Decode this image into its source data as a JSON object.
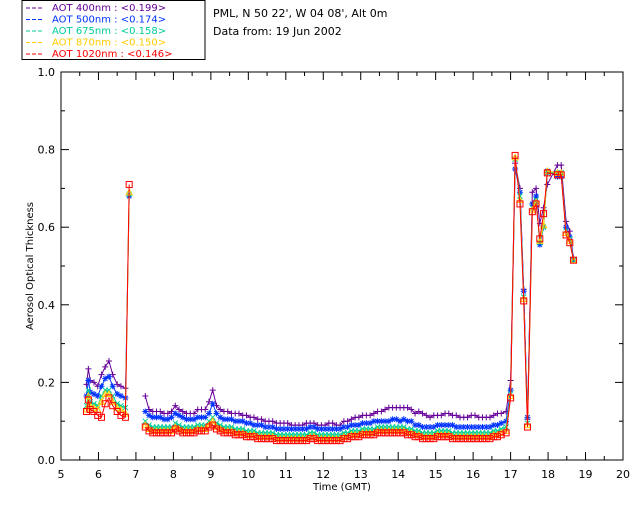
{
  "site_info": {
    "location": "PML, N 50 22', W 04 08', Alt 0m",
    "date": "Data from: 19 Jun 2002"
  },
  "chart_data": {
    "type": "line",
    "xlabel": "Time (GMT)",
    "ylabel": "Aerosol Optical Thickness",
    "xlim": [
      5,
      20
    ],
    "ylim": [
      0.0,
      1.0
    ],
    "x_ticks": [
      5,
      6,
      7,
      8,
      9,
      10,
      11,
      12,
      13,
      14,
      15,
      16,
      17,
      18,
      19,
      20
    ],
    "y_ticks": [
      0.0,
      0.2,
      0.4,
      0.6,
      0.8,
      1.0
    ],
    "y_tick_labels": [
      "0.0",
      "0.2",
      "0.4",
      "0.6",
      "0.8",
      "1.0"
    ],
    "grid": false,
    "legend_placement": "top-left-outside",
    "x": [
      5.68,
      5.73,
      5.78,
      5.88,
      5.98,
      6.08,
      6.18,
      6.28,
      6.38,
      6.5,
      6.6,
      6.72,
      6.82,
      7.25,
      7.35,
      7.45,
      7.55,
      7.65,
      7.75,
      7.85,
      7.95,
      8.05,
      8.15,
      8.25,
      8.35,
      8.45,
      8.55,
      8.65,
      8.75,
      8.85,
      8.95,
      9.05,
      9.15,
      9.25,
      9.35,
      9.45,
      9.55,
      9.65,
      9.75,
      9.85,
      9.95,
      10.05,
      10.15,
      10.25,
      10.35,
      10.45,
      10.55,
      10.65,
      10.75,
      10.85,
      10.95,
      11.05,
      11.15,
      11.25,
      11.35,
      11.45,
      11.55,
      11.65,
      11.75,
      11.85,
      11.95,
      12.05,
      12.15,
      12.25,
      12.35,
      12.45,
      12.55,
      12.65,
      12.75,
      12.85,
      12.95,
      13.05,
      13.15,
      13.25,
      13.35,
      13.45,
      13.55,
      13.65,
      13.75,
      13.85,
      13.95,
      14.05,
      14.15,
      14.25,
      14.35,
      14.45,
      14.55,
      14.65,
      14.75,
      14.85,
      14.95,
      15.05,
      15.15,
      15.25,
      15.35,
      15.45,
      15.55,
      15.65,
      15.75,
      15.85,
      15.95,
      16.05,
      16.15,
      16.25,
      16.35,
      16.45,
      16.55,
      16.65,
      16.75,
      16.88,
      17.0,
      17.12,
      17.25,
      17.35,
      17.45,
      17.58,
      17.68,
      17.78,
      17.88,
      17.98,
      18.25,
      18.35,
      18.48,
      18.58,
      18.68
    ],
    "series": [
      {
        "name": "AOT  400nm : <0.199>",
        "color": "#660099",
        "marker": "plus",
        "values": [
          0.195,
          0.235,
          0.205,
          0.2,
          0.19,
          0.22,
          0.24,
          0.255,
          0.22,
          0.195,
          0.19,
          0.185,
          null,
          0.165,
          0.13,
          0.125,
          0.125,
          0.125,
          0.12,
          0.12,
          0.125,
          0.14,
          0.13,
          0.125,
          0.12,
          0.12,
          0.12,
          0.13,
          0.13,
          0.13,
          0.15,
          0.18,
          0.14,
          0.13,
          0.125,
          0.125,
          0.12,
          0.12,
          0.12,
          0.115,
          0.115,
          0.11,
          0.11,
          0.105,
          0.105,
          0.1,
          0.1,
          0.1,
          0.095,
          0.095,
          0.095,
          0.095,
          0.09,
          0.09,
          0.09,
          0.09,
          0.095,
          0.095,
          0.095,
          0.09,
          0.09,
          0.09,
          0.095,
          0.095,
          0.09,
          0.09,
          0.1,
          0.1,
          0.105,
          0.11,
          0.11,
          0.115,
          0.115,
          0.115,
          0.12,
          0.125,
          0.125,
          0.13,
          0.135,
          0.135,
          0.135,
          0.135,
          0.135,
          0.135,
          0.13,
          0.12,
          0.125,
          0.12,
          0.115,
          0.11,
          0.115,
          0.115,
          0.115,
          0.12,
          0.12,
          0.115,
          0.115,
          0.11,
          0.11,
          0.11,
          0.115,
          0.115,
          0.11,
          0.11,
          0.11,
          0.11,
          0.115,
          0.12,
          0.12,
          0.125,
          0.205,
          0.765,
          0.7,
          0.44,
          0.105,
          0.69,
          0.7,
          0.61,
          0.65,
          0.71,
          0.76,
          0.76,
          0.615,
          0.59,
          0.52
        ]
      },
      {
        "name": "AOT  500nm : <0.174>",
        "color": "#0033ff",
        "marker": "star",
        "values": [
          0.165,
          0.205,
          0.175,
          0.17,
          0.165,
          0.19,
          0.21,
          0.215,
          0.19,
          0.17,
          0.165,
          0.16,
          0.68,
          0.125,
          0.115,
          0.11,
          0.11,
          0.11,
          0.105,
          0.105,
          0.11,
          0.12,
          0.115,
          0.11,
          0.105,
          0.105,
          0.105,
          0.11,
          0.11,
          0.11,
          0.12,
          0.145,
          0.12,
          0.11,
          0.105,
          0.105,
          0.105,
          0.1,
          0.1,
          0.1,
          0.095,
          0.095,
          0.09,
          0.09,
          0.09,
          0.085,
          0.085,
          0.085,
          0.08,
          0.08,
          0.08,
          0.08,
          0.08,
          0.08,
          0.08,
          0.08,
          0.08,
          0.085,
          0.085,
          0.08,
          0.08,
          0.08,
          0.08,
          0.08,
          0.08,
          0.08,
          0.085,
          0.085,
          0.09,
          0.09,
          0.09,
          0.095,
          0.095,
          0.095,
          0.1,
          0.1,
          0.1,
          0.1,
          0.1,
          0.105,
          0.105,
          0.1,
          0.105,
          0.1,
          0.1,
          0.09,
          0.09,
          0.085,
          0.085,
          0.085,
          0.085,
          0.09,
          0.09,
          0.09,
          0.09,
          0.09,
          0.085,
          0.085,
          0.085,
          0.085,
          0.085,
          0.085,
          0.085,
          0.085,
          0.085,
          0.085,
          0.09,
          0.09,
          0.095,
          0.1,
          0.18,
          0.75,
          0.69,
          0.435,
          0.11,
          0.66,
          0.68,
          0.555,
          0.6,
          0.745,
          0.73,
          0.73,
          0.6,
          0.575,
          0.515
        ]
      },
      {
        "name": "AOT  675nm : <0.158>",
        "color": "#00cc99",
        "marker": "x",
        "values": [
          0.14,
          0.18,
          0.15,
          0.145,
          0.14,
          0.165,
          0.18,
          0.18,
          0.165,
          0.145,
          0.14,
          0.135,
          0.685,
          0.1,
          0.09,
          0.085,
          0.085,
          0.085,
          0.085,
          0.085,
          0.085,
          0.095,
          0.09,
          0.085,
          0.085,
          0.085,
          0.085,
          0.09,
          0.09,
          0.09,
          0.1,
          0.11,
          0.095,
          0.09,
          0.085,
          0.085,
          0.085,
          0.08,
          0.08,
          0.08,
          0.075,
          0.075,
          0.075,
          0.07,
          0.07,
          0.07,
          0.07,
          0.07,
          0.065,
          0.065,
          0.065,
          0.065,
          0.065,
          0.065,
          0.065,
          0.065,
          0.065,
          0.07,
          0.07,
          0.065,
          0.065,
          0.065,
          0.065,
          0.065,
          0.065,
          0.065,
          0.07,
          0.07,
          0.075,
          0.075,
          0.075,
          0.08,
          0.08,
          0.08,
          0.08,
          0.085,
          0.085,
          0.085,
          0.085,
          0.085,
          0.085,
          0.085,
          0.085,
          0.08,
          0.08,
          0.075,
          0.075,
          0.07,
          0.07,
          0.07,
          0.07,
          0.075,
          0.075,
          0.075,
          0.075,
          0.07,
          0.07,
          0.07,
          0.07,
          0.07,
          0.07,
          0.07,
          0.07,
          0.07,
          0.07,
          0.07,
          0.075,
          0.075,
          0.08,
          0.085,
          0.17,
          0.775,
          0.68,
          0.42,
          0.095,
          0.65,
          0.67,
          0.56,
          0.6,
          0.74,
          0.74,
          0.74,
          0.59,
          0.57,
          0.515
        ]
      },
      {
        "name": "AOT  870nm : <0.150>",
        "color": "#ffcc00",
        "marker": "triangle",
        "values": [
          0.13,
          0.165,
          0.14,
          0.135,
          0.13,
          0.15,
          0.17,
          0.17,
          0.15,
          0.135,
          0.13,
          0.12,
          0.69,
          0.09,
          0.08,
          0.075,
          0.075,
          0.075,
          0.075,
          0.075,
          0.075,
          0.085,
          0.08,
          0.075,
          0.075,
          0.075,
          0.075,
          0.08,
          0.08,
          0.08,
          0.09,
          0.1,
          0.085,
          0.08,
          0.075,
          0.075,
          0.075,
          0.07,
          0.07,
          0.07,
          0.065,
          0.065,
          0.065,
          0.06,
          0.06,
          0.06,
          0.06,
          0.06,
          0.055,
          0.055,
          0.055,
          0.055,
          0.055,
          0.055,
          0.055,
          0.055,
          0.055,
          0.06,
          0.06,
          0.055,
          0.055,
          0.055,
          0.055,
          0.055,
          0.055,
          0.055,
          0.06,
          0.06,
          0.065,
          0.065,
          0.065,
          0.07,
          0.07,
          0.07,
          0.07,
          0.075,
          0.075,
          0.075,
          0.075,
          0.075,
          0.075,
          0.075,
          0.075,
          0.07,
          0.07,
          0.065,
          0.065,
          0.06,
          0.06,
          0.06,
          0.06,
          0.065,
          0.065,
          0.065,
          0.065,
          0.06,
          0.06,
          0.06,
          0.06,
          0.06,
          0.06,
          0.06,
          0.06,
          0.06,
          0.06,
          0.06,
          0.065,
          0.065,
          0.07,
          0.075,
          0.165,
          0.78,
          0.67,
          0.415,
          0.09,
          0.645,
          0.665,
          0.565,
          0.605,
          0.745,
          0.74,
          0.74,
          0.585,
          0.565,
          0.515
        ]
      },
      {
        "name": "AOT 1020nm : <0.146>",
        "color": "#ff0000",
        "marker": "square",
        "values": [
          0.125,
          0.155,
          0.13,
          0.125,
          0.115,
          0.11,
          0.145,
          0.16,
          0.14,
          0.125,
          0.115,
          0.11,
          0.71,
          0.085,
          0.075,
          0.07,
          0.07,
          0.07,
          0.07,
          0.07,
          0.07,
          0.08,
          0.075,
          0.07,
          0.07,
          0.07,
          0.07,
          0.075,
          0.075,
          0.075,
          0.085,
          0.09,
          0.08,
          0.075,
          0.07,
          0.07,
          0.07,
          0.065,
          0.065,
          0.065,
          0.06,
          0.06,
          0.06,
          0.055,
          0.055,
          0.055,
          0.055,
          0.055,
          0.05,
          0.05,
          0.05,
          0.05,
          0.05,
          0.05,
          0.05,
          0.05,
          0.05,
          0.055,
          0.055,
          0.05,
          0.05,
          0.05,
          0.05,
          0.05,
          0.05,
          0.05,
          0.055,
          0.055,
          0.06,
          0.06,
          0.06,
          0.065,
          0.065,
          0.065,
          0.065,
          0.07,
          0.07,
          0.07,
          0.07,
          0.07,
          0.07,
          0.07,
          0.07,
          0.065,
          0.065,
          0.06,
          0.06,
          0.055,
          0.055,
          0.055,
          0.055,
          0.06,
          0.06,
          0.06,
          0.06,
          0.055,
          0.055,
          0.055,
          0.055,
          0.055,
          0.055,
          0.055,
          0.055,
          0.055,
          0.055,
          0.055,
          0.06,
          0.06,
          0.065,
          0.07,
          0.16,
          0.785,
          0.66,
          0.41,
          0.085,
          0.64,
          0.66,
          0.57,
          0.635,
          0.74,
          0.735,
          0.735,
          0.58,
          0.56,
          0.515
        ]
      }
    ]
  }
}
